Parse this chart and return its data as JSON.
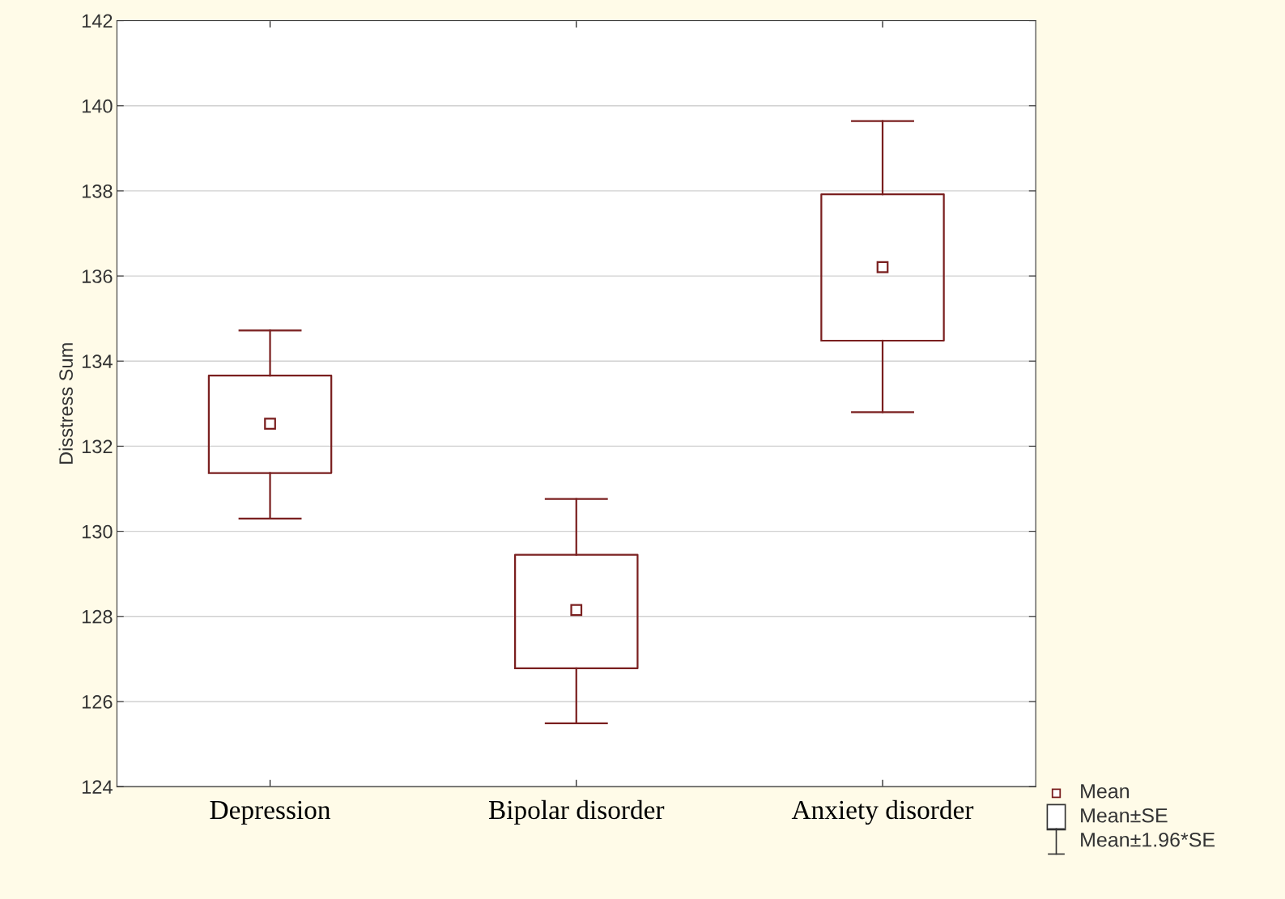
{
  "chart_data": {
    "type": "box",
    "ylabel": "Disstress Sum",
    "categories": [
      "Depression",
      "Bipolar disorder",
      "Anxiety disorder"
    ],
    "boxes": [
      {
        "low": 130.3,
        "q1": 131.37,
        "mean": 132.53,
        "q3": 133.66,
        "high": 134.72
      },
      {
        "low": 125.49,
        "q1": 126.78,
        "mean": 128.15,
        "q3": 129.45,
        "high": 130.76
      },
      {
        "low": 132.8,
        "q1": 134.48,
        "mean": 136.21,
        "q3": 137.92,
        "high": 139.64
      }
    ],
    "color": "#7a1f1f",
    "ylim": [
      124,
      142
    ],
    "yticks": [
      124,
      126,
      128,
      130,
      132,
      134,
      136,
      138,
      140,
      142
    ],
    "grid": "y",
    "annotations": [
      "Mean",
      "Mean±SE",
      "Mean±1.96*SE"
    ]
  }
}
